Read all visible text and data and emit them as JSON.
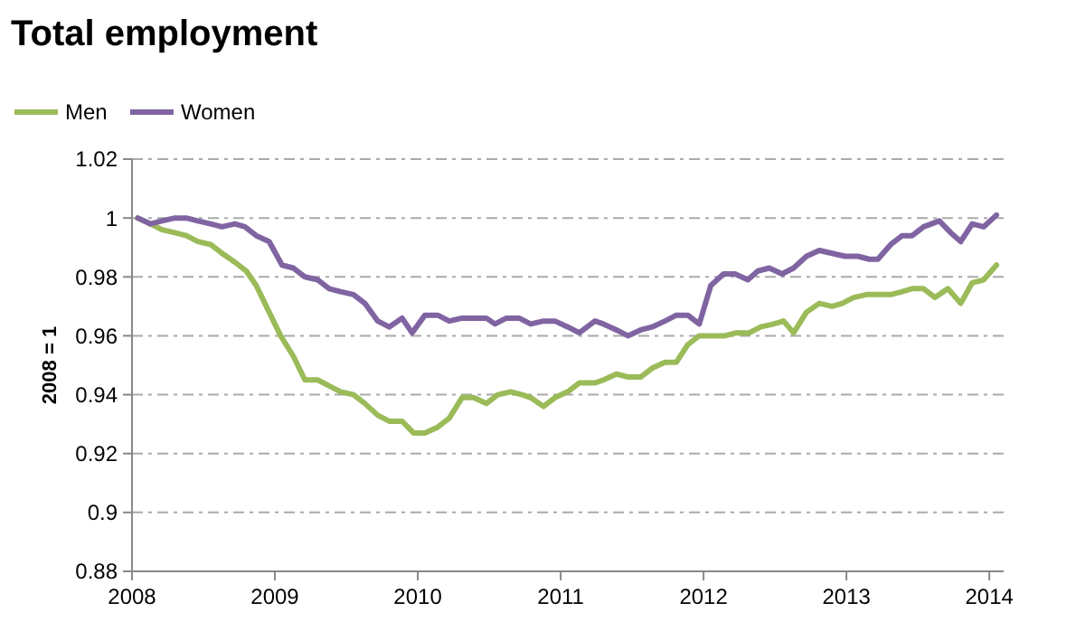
{
  "chart_data": {
    "type": "line",
    "title": "Total employment",
    "ylabel": "2008 = 1",
    "legend": "top left",
    "grid": "y",
    "line_style": "solid",
    "xlim": [
      2008,
      2014.1
    ],
    "xticks": [
      2008,
      2009,
      2010,
      2011,
      2012,
      2013,
      2014
    ],
    "ylim": [
      0.88,
      1.02
    ],
    "yticks": [
      0.88,
      0.9,
      0.92,
      0.94,
      0.96,
      0.98,
      1,
      1.02
    ],
    "series": [
      {
        "name": "Men",
        "color": "#9bbb59",
        "x": [
          2008.04,
          2008.13,
          2008.21,
          2008.3,
          2008.38,
          2008.46,
          2008.55,
          2008.63,
          2008.72,
          2008.8,
          2008.87,
          2008.96,
          2009.04,
          2009.13,
          2009.21,
          2009.3,
          2009.38,
          2009.46,
          2009.55,
          2009.63,
          2009.72,
          2009.8,
          2009.89,
          2009.97,
          2010.05,
          2010.14,
          2010.22,
          2010.31,
          2010.39,
          2010.48,
          2010.56,
          2010.65,
          2010.73,
          2010.79,
          2010.88,
          2010.96,
          2011.05,
          2011.13,
          2011.24,
          2011.3,
          2011.39,
          2011.47,
          2011.56,
          2011.64,
          2011.73,
          2011.81,
          2011.89,
          2011.97,
          2012.06,
          2012.15,
          2012.23,
          2012.32,
          2012.4,
          2012.49,
          2012.56,
          2012.63,
          2012.72,
          2012.81,
          2012.9,
          2012.97,
          2013.05,
          2013.14,
          2013.22,
          2013.31,
          2013.39,
          2013.46,
          2013.54,
          2013.62,
          2013.71,
          2013.8,
          2013.88,
          2013.96,
          2014.05
        ],
        "values": [
          1,
          0.998,
          0.996,
          0.995,
          0.994,
          0.992,
          0.991,
          0.988,
          0.985,
          0.982,
          0.977,
          0.968,
          0.96,
          0.953,
          0.945,
          0.945,
          0.943,
          0.941,
          0.94,
          0.937,
          0.933,
          0.931,
          0.931,
          0.927,
          0.927,
          0.929,
          0.932,
          0.939,
          0.939,
          0.937,
          0.94,
          0.941,
          0.94,
          0.939,
          0.936,
          0.939,
          0.941,
          0.944,
          0.944,
          0.945,
          0.947,
          0.946,
          0.946,
          0.949,
          0.951,
          0.951,
          0.957,
          0.96,
          0.96,
          0.96,
          0.961,
          0.961,
          0.963,
          0.964,
          0.965,
          0.961,
          0.968,
          0.971,
          0.97,
          0.971,
          0.973,
          0.974,
          0.974,
          0.974,
          0.975,
          0.976,
          0.976,
          0.973,
          0.976,
          0.971,
          0.978,
          0.979,
          0.984
        ]
      },
      {
        "name": "Women",
        "color": "#8064a2",
        "x": [
          2008.04,
          2008.13,
          2008.21,
          2008.3,
          2008.38,
          2008.46,
          2008.55,
          2008.63,
          2008.72,
          2008.79,
          2008.87,
          2008.96,
          2009.05,
          2009.13,
          2009.21,
          2009.3,
          2009.38,
          2009.46,
          2009.55,
          2009.63,
          2009.72,
          2009.8,
          2009.89,
          2009.96,
          2010.05,
          2010.14,
          2010.22,
          2010.31,
          2010.39,
          2010.48,
          2010.54,
          2010.62,
          2010.71,
          2010.79,
          2010.88,
          2010.96,
          2011.05,
          2011.13,
          2011.24,
          2011.3,
          2011.39,
          2011.47,
          2011.56,
          2011.64,
          2011.73,
          2011.81,
          2011.89,
          2011.97,
          2012.05,
          2012.14,
          2012.22,
          2012.31,
          2012.38,
          2012.46,
          2012.55,
          2012.63,
          2012.72,
          2012.81,
          2012.9,
          2012.99,
          2013.08,
          2013.16,
          2013.22,
          2013.31,
          2013.39,
          2013.46,
          2013.54,
          2013.65,
          2013.73,
          2013.8,
          2013.88,
          2013.96,
          2014.05
        ],
        "values": [
          1,
          0.998,
          0.999,
          1,
          1,
          0.999,
          0.998,
          0.997,
          0.998,
          0.997,
          0.994,
          0.992,
          0.984,
          0.983,
          0.98,
          0.979,
          0.976,
          0.975,
          0.974,
          0.971,
          0.965,
          0.963,
          0.966,
          0.961,
          0.967,
          0.967,
          0.965,
          0.966,
          0.966,
          0.966,
          0.964,
          0.966,
          0.966,
          0.964,
          0.965,
          0.965,
          0.963,
          0.961,
          0.965,
          0.964,
          0.962,
          0.96,
          0.962,
          0.963,
          0.965,
          0.967,
          0.967,
          0.964,
          0.977,
          0.981,
          0.981,
          0.979,
          0.982,
          0.983,
          0.981,
          0.983,
          0.987,
          0.989,
          0.988,
          0.987,
          0.987,
          0.986,
          0.986,
          0.991,
          0.994,
          0.994,
          0.997,
          0.999,
          0.995,
          0.992,
          0.998,
          0.997,
          1.001
        ]
      }
    ]
  }
}
